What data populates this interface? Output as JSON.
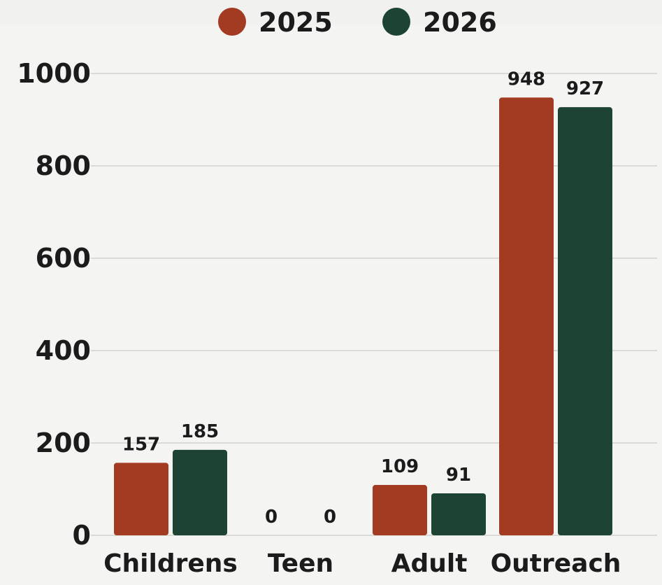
{
  "chart_data": {
    "type": "bar",
    "categories": [
      "Childrens",
      "Teen",
      "Adult",
      "Outreach"
    ],
    "series": [
      {
        "name": "2025",
        "values": [
          157,
          0,
          109,
          948
        ],
        "color": "#a33a22"
      },
      {
        "name": "2026",
        "values": [
          185,
          0,
          91,
          927
        ],
        "color": "#1d4432"
      }
    ],
    "yticks": [
      0,
      200,
      400,
      600,
      800,
      1000
    ],
    "ylim": [
      0,
      1000
    ],
    "title": "",
    "xlabel": "",
    "ylabel": "",
    "grid": true,
    "legend_position": "top-center"
  }
}
